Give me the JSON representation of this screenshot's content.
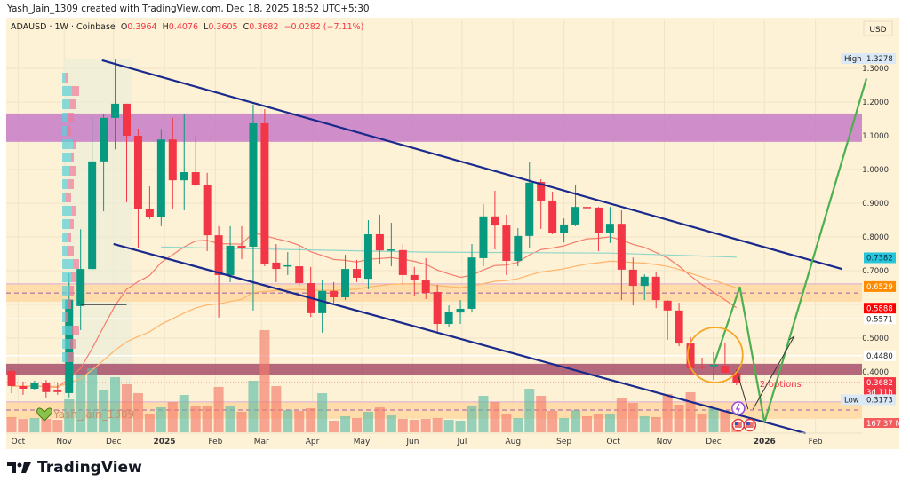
{
  "credit": "Yash_Jain_1309 created with TradingView.com, Dec 18, 2025 18:52 UTC+5:30",
  "legend": {
    "symbol": "ADAUSD · 1W · Coinbase",
    "o_label": "O",
    "o": "0.3964",
    "h_label": "H",
    "h": "0.4076",
    "l_label": "L",
    "l": "0.3605",
    "c_label": "C",
    "c": "0.3682",
    "change": "−0.0282 (−7.11%)"
  },
  "currency_button": "USD",
  "watermark": "Yash_Jain_1309",
  "brand": "TradingView",
  "colors": {
    "background": "#fdf1d6",
    "up": "#089981",
    "down": "#f23645",
    "channel": "#1a2a8c",
    "projection": "#4caf50",
    "ema_fast": "#f47c6b",
    "ema_slow": "#ffb46b",
    "ma_long": "#8fd6c9",
    "resistance_zone": "#c77dc7",
    "mid_zone": "#ffd8a0",
    "support_zone": "#9c3a5e"
  },
  "icons": [
    "lightning-event-icon",
    "us-flag-icon",
    "us-flag-icon",
    "heart-icon",
    "tradingview-logo-icon"
  ],
  "chart_data": {
    "type": "candlestick",
    "symbol": "ADAUSD",
    "interval": "1W",
    "exchange": "Coinbase",
    "ylim": [
      0.2,
      1.35
    ],
    "grid": true,
    "candle_fields": [
      "date",
      "open",
      "high",
      "low",
      "close",
      "volume_m"
    ],
    "candles": [
      [
        "2024-09-30",
        0.403,
        0.411,
        0.337,
        0.358,
        284
      ],
      [
        "2024-10-07",
        0.358,
        0.371,
        0.332,
        0.35,
        250
      ],
      [
        "2024-10-14",
        0.35,
        0.374,
        0.345,
        0.366,
        267
      ],
      [
        "2024-10-21",
        0.366,
        0.376,
        0.324,
        0.34,
        250
      ],
      [
        "2024-10-28",
        0.345,
        0.366,
        0.332,
        0.34,
        234
      ],
      [
        "2024-11-04",
        0.337,
        0.692,
        0.324,
        0.614,
        618
      ],
      [
        "2024-11-11",
        0.595,
        0.823,
        0.524,
        0.705,
        1086
      ],
      [
        "2024-11-18",
        0.705,
        1.155,
        0.7,
        1.024,
        1202
      ],
      [
        "2024-11-25",
        1.024,
        1.166,
        0.876,
        1.153,
        785
      ],
      [
        "2024-12-02",
        1.153,
        1.326,
        1.06,
        1.195,
        1035
      ],
      [
        "2024-12-09",
        1.195,
        1.195,
        0.903,
        1.1,
        902
      ],
      [
        "2024-12-16",
        1.1,
        1.121,
        0.766,
        0.884,
        735
      ],
      [
        "2024-12-23",
        0.884,
        0.95,
        0.853,
        0.858,
        334
      ],
      [
        "2024-12-30",
        0.858,
        1.12,
        0.832,
        1.089,
        468
      ],
      [
        "2025-01-06",
        1.089,
        1.153,
        0.884,
        0.968,
        568
      ],
      [
        "2025-01-13",
        0.968,
        1.166,
        0.879,
        0.992,
        701
      ],
      [
        "2025-01-20",
        0.992,
        1.1,
        0.95,
        0.955,
        501
      ],
      [
        "2025-01-27",
        0.955,
        0.99,
        0.758,
        0.805,
        501
      ],
      [
        "2025-02-03",
        0.805,
        0.832,
        0.561,
        0.687,
        852
      ],
      [
        "2025-02-10",
        0.687,
        0.832,
        0.666,
        0.774,
        484
      ],
      [
        "2025-02-17",
        0.774,
        0.832,
        0.734,
        0.768,
        384
      ],
      [
        "2025-02-24",
        0.771,
        1.192,
        0.582,
        1.137,
        969
      ],
      [
        "2025-03-03",
        1.137,
        1.179,
        0.713,
        0.721,
        1921
      ],
      [
        "2025-03-10",
        0.724,
        0.779,
        0.666,
        0.705,
        868
      ],
      [
        "2025-03-17",
        0.713,
        0.755,
        0.687,
        0.716,
        418
      ],
      [
        "2025-03-24",
        0.713,
        0.774,
        0.655,
        0.663,
        401
      ],
      [
        "2025-03-31",
        0.663,
        0.711,
        0.563,
        0.574,
        451
      ],
      [
        "2025-04-07",
        0.574,
        0.671,
        0.516,
        0.64,
        735
      ],
      [
        "2025-04-14",
        0.64,
        0.666,
        0.603,
        0.621,
        217
      ],
      [
        "2025-04-21",
        0.621,
        0.747,
        0.613,
        0.705,
        301
      ],
      [
        "2025-04-28",
        0.705,
        0.732,
        0.666,
        0.679,
        267
      ],
      [
        "2025-05-05",
        0.676,
        0.85,
        0.645,
        0.808,
        384
      ],
      [
        "2025-05-12",
        0.808,
        0.866,
        0.721,
        0.76,
        468
      ],
      [
        "2025-05-19",
        0.761,
        0.842,
        0.713,
        0.763,
        317
      ],
      [
        "2025-05-26",
        0.761,
        0.779,
        0.658,
        0.687,
        251
      ],
      [
        "2025-06-02",
        0.687,
        0.711,
        0.624,
        0.671,
        234
      ],
      [
        "2025-06-09",
        0.671,
        0.737,
        0.616,
        0.634,
        251
      ],
      [
        "2025-06-16",
        0.637,
        0.658,
        0.518,
        0.542,
        267
      ],
      [
        "2025-06-23",
        0.542,
        0.597,
        0.534,
        0.579,
        234
      ],
      [
        "2025-06-30",
        0.576,
        0.613,
        0.542,
        0.587,
        217
      ],
      [
        "2025-07-07",
        0.587,
        0.779,
        0.576,
        0.739,
        501
      ],
      [
        "2025-07-14",
        0.737,
        0.897,
        0.713,
        0.861,
        685
      ],
      [
        "2025-07-21",
        0.861,
        0.937,
        0.763,
        0.834,
        568
      ],
      [
        "2025-07-28",
        0.834,
        0.866,
        0.687,
        0.729,
        351
      ],
      [
        "2025-08-04",
        0.729,
        0.826,
        0.713,
        0.803,
        267
      ],
      [
        "2025-08-11",
        0.803,
        1.021,
        0.768,
        0.961,
        818
      ],
      [
        "2025-08-18",
        0.963,
        0.971,
        0.824,
        0.908,
        685
      ],
      [
        "2025-08-25",
        0.908,
        0.934,
        0.808,
        0.811,
        401
      ],
      [
        "2025-09-01",
        0.811,
        0.855,
        0.784,
        0.837,
        267
      ],
      [
        "2025-09-08",
        0.837,
        0.955,
        0.832,
        0.889,
        418
      ],
      [
        "2025-09-15",
        0.889,
        0.939,
        0.858,
        0.887,
        301
      ],
      [
        "2025-09-22",
        0.887,
        0.889,
        0.758,
        0.811,
        334
      ],
      [
        "2025-09-29",
        0.811,
        0.889,
        0.782,
        0.839,
        334
      ],
      [
        "2025-10-06",
        0.839,
        0.879,
        0.613,
        0.703,
        651
      ],
      [
        "2025-10-13",
        0.703,
        0.739,
        0.597,
        0.655,
        551
      ],
      [
        "2025-10-20",
        0.655,
        0.689,
        0.613,
        0.682,
        301
      ],
      [
        "2025-10-27",
        0.682,
        0.695,
        0.589,
        0.613,
        284
      ],
      [
        "2025-11-03",
        0.611,
        0.613,
        0.495,
        0.582,
        718
      ],
      [
        "2025-11-10",
        0.582,
        0.605,
        0.476,
        0.484,
        518
      ],
      [
        "2025-11-17",
        0.484,
        0.503,
        0.392,
        0.411,
        752
      ],
      [
        "2025-11-24",
        0.416,
        0.442,
        0.408,
        0.413,
        334
      ],
      [
        "2025-12-01",
        0.418,
        0.458,
        0.376,
        0.421,
        451
      ],
      [
        "2025-12-08",
        0.418,
        0.487,
        0.397,
        0.397,
        401
      ],
      [
        "2025-12-15",
        0.3964,
        0.4076,
        0.3605,
        0.3682,
        167.37
      ]
    ],
    "ma_long": [
      [
        "2024-12-30",
        0.77
      ],
      [
        "2025-06-09",
        0.755
      ],
      [
        "2025-09-29",
        0.752
      ],
      [
        "2025-12-15",
        0.74
      ]
    ],
    "x_ticks": [
      {
        "label": "Oct",
        "date": "2024-10-04"
      },
      {
        "label": "Nov",
        "date": "2024-11-01"
      },
      {
        "label": "Dec",
        "date": "2024-12-01"
      },
      {
        "label": "2025",
        "date": "2025-01-01",
        "bold": true
      },
      {
        "label": "Feb",
        "date": "2025-02-01"
      },
      {
        "label": "Mar",
        "date": "2025-03-01"
      },
      {
        "label": "Apr",
        "date": "2025-04-01"
      },
      {
        "label": "May",
        "date": "2025-05-01"
      },
      {
        "label": "Jun",
        "date": "2025-06-01"
      },
      {
        "label": "Jul",
        "date": "2025-07-01"
      },
      {
        "label": "Aug",
        "date": "2025-08-01"
      },
      {
        "label": "Sep",
        "date": "2025-09-01"
      },
      {
        "label": "Oct",
        "date": "2025-10-01"
      },
      {
        "label": "Nov",
        "date": "2025-11-01"
      },
      {
        "label": "Dec",
        "date": "2025-12-01"
      },
      {
        "label": "2026",
        "date": "2026-01-01",
        "bold": true
      },
      {
        "label": "Feb",
        "date": "2026-02-01"
      }
    ],
    "y_ticks": [
      "1.3000",
      "1.2000",
      "1.1000",
      "1.0000",
      "0.9000",
      "0.8000",
      "0.7000",
      "0.5000",
      "0.4000"
    ],
    "price_tags": [
      {
        "label": "High",
        "value": "1.3278",
        "bg": "#dbe9f7",
        "fg": "#222"
      },
      {
        "value": "0.7382",
        "bg": "#26c6da",
        "fg": "#0b2a44"
      },
      {
        "value": "0.6529",
        "bg": "#ff8c00",
        "fg": "#ffffff"
      },
      {
        "value": "0.5888",
        "bg": "#ff0000",
        "fg": "#ffffff"
      },
      {
        "value": "0.5571",
        "bg": "#ffffff",
        "fg": "#222"
      },
      {
        "value": "0.4480",
        "bg": "#ffffff",
        "fg": "#222"
      },
      {
        "value": "0.3682",
        "sub": "3d 11h",
        "bg": "#f23645",
        "fg": "#ffffff"
      },
      {
        "label": "Low",
        "value": "0.3173",
        "bg": "#dbe9f7",
        "fg": "#222"
      }
    ],
    "volume_tag": {
      "value": "167.37 M",
      "bg": "#f25c5c",
      "fg": "#ffffff"
    },
    "zones": [
      {
        "name": "resistance-zone",
        "top": 1.166,
        "bottom": 1.082,
        "color": "#c77dc7"
      },
      {
        "name": "mid-zone",
        "top": 0.661,
        "bottom": 0.608,
        "mid": 0.634,
        "color": "#ffd8a0"
      },
      {
        "name": "support-zone",
        "top": 0.424,
        "bottom": 0.392,
        "color": "#9c3a5e"
      },
      {
        "name": "low-zone",
        "top": 0.311,
        "bottom": 0.261,
        "mid": 0.287,
        "color": "#ffd8a0"
      }
    ],
    "h_lines": [
      {
        "price": 0.5571,
        "color": "#ffffff"
      },
      {
        "price": 0.448,
        "color": "#ffffff"
      }
    ],
    "highlight_range": {
      "from": "2024-11-04",
      "to": "2024-12-09"
    },
    "marker_line": {
      "from": "2024-11-11",
      "to": "2024-12-09",
      "price": 0.6
    },
    "channel": {
      "upper": [
        [
          "2024-11-24",
          1.324
        ],
        [
          "2026-02-17",
          0.705
        ]
      ],
      "lower": [
        [
          "2024-12-01",
          0.779
        ],
        [
          "2026-01-26",
          0.218
        ]
      ]
    },
    "projection": [
      [
        "2025-12-01",
        0.418
      ],
      [
        "2025-12-17",
        0.652
      ],
      [
        "2026-01-01",
        0.25
      ],
      [
        "2026-03-04",
        1.27
      ]
    ],
    "arrows": [
      [
        [
          "2025-12-15",
          0.405
        ],
        [
          "2025-12-22",
          0.289
        ]
      ],
      [
        [
          "2025-12-25",
          0.289
        ],
        [
          "2026-01-19",
          0.505
        ]
      ]
    ],
    "circle_center": [
      "2025-12-02",
      0.45
    ],
    "annotation": {
      "text": "2-options",
      "date": "2025-12-29",
      "price": 0.355,
      "color": "#f23645"
    }
  }
}
